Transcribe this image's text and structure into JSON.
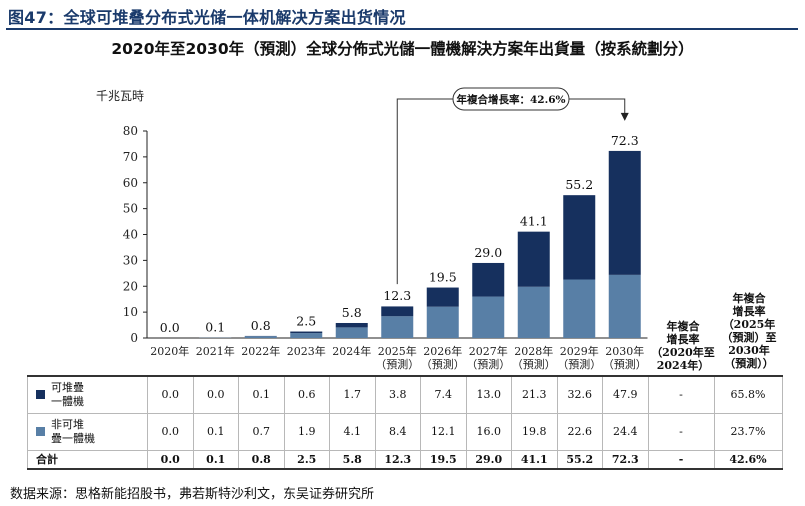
{
  "figure_title": "图47：全球可堆叠分布式光储一体机解决方案出货情况",
  "source_note": "数据来源：思格新能招股书，弗若斯特沙利文，东吴证券研究所",
  "colors": {
    "stackable": "#16305e",
    "non_stackable": "#587fa6",
    "brand": "#1a3a6b"
  },
  "chart_data": {
    "type": "bar",
    "title": "2020年至2030年（預測）全球分佈式光儲一體機解決方案年出貨量（按系統劃分）",
    "ylabel": "千兆瓦時",
    "ylim": [
      0,
      80
    ],
    "yticks": [
      0,
      10,
      20,
      30,
      40,
      50,
      60,
      70,
      80
    ],
    "categories": [
      "2020年",
      "2021年",
      "2022年",
      "2023年",
      "2024年",
      "2025年(預測)",
      "2026年(預測)",
      "2027年(預測)",
      "2028年(預測)",
      "2029年(預測)",
      "2030年(預測)"
    ],
    "category_lines": [
      [
        "2020年"
      ],
      [
        "2021年"
      ],
      [
        "2022年"
      ],
      [
        "2023年"
      ],
      [
        "2024年"
      ],
      [
        "2025年",
        "（預測）"
      ],
      [
        "2026年",
        "（預測）"
      ],
      [
        "2027年",
        "（預測）"
      ],
      [
        "2028年",
        "（預測）"
      ],
      [
        "2029年",
        "（預測）"
      ],
      [
        "2030年",
        "（預測）"
      ]
    ],
    "series": [
      {
        "name": "可堆疊一體機",
        "values": [
          0.0,
          0.0,
          0.1,
          0.6,
          1.7,
          3.8,
          7.4,
          13.0,
          21.3,
          32.6,
          47.9
        ]
      },
      {
        "name": "非可堆疊一體機",
        "values": [
          0.0,
          0.1,
          0.7,
          1.9,
          4.1,
          8.4,
          12.1,
          16.0,
          19.8,
          22.6,
          24.4
        ]
      }
    ],
    "totals_label": "合計",
    "totals": [
      0.0,
      0.1,
      0.8,
      2.5,
      5.8,
      12.3,
      19.5,
      29.0,
      41.1,
      55.2,
      72.3
    ],
    "cagr_annotation": "年複合增長率：42.6%",
    "cagr_columns": [
      {
        "header_lines": [
          "年複合",
          "增長率",
          "（2020年至",
          "2024年）"
        ],
        "values": [
          "-",
          "-",
          "-"
        ]
      },
      {
        "header_lines": [
          "年複合",
          "增長率",
          "（2025年",
          "（預測）至",
          "2030年",
          "（預測））"
        ],
        "values": [
          "65.8%",
          "23.7%",
          "42.6%"
        ]
      }
    ],
    "grid": false,
    "legend": "in-table"
  }
}
